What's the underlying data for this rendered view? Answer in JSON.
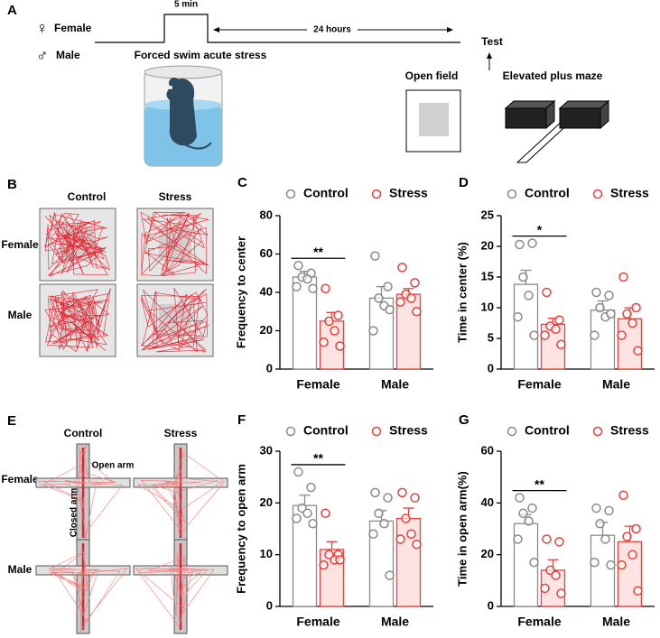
{
  "schematic": {
    "label": "A",
    "female_symbol": "♀",
    "female": "Female",
    "male_symbol": "♂",
    "male": "Male",
    "duration": "5 min",
    "interval": "24 hours",
    "stress": "Forced swim acute stress",
    "test": "Test",
    "open_field": "Open field",
    "plus_maze": "Elevated plus maze"
  },
  "tracks": {
    "label": "B",
    "columns": [
      "Control",
      "Stress"
    ],
    "rows": [
      "Female",
      "Male"
    ]
  },
  "maze_tracks": {
    "label": "E",
    "columns": [
      "Control",
      "Stress"
    ],
    "rows": [
      "Female",
      "Male"
    ],
    "open_arm": "Open arm",
    "closed_arm": "Closed arm"
  },
  "chart_data": [
    {
      "type": "bar",
      "label": "C",
      "ylabel": "Frequency to center",
      "categories": [
        "Female",
        "Male"
      ],
      "ylim": [
        0,
        80
      ],
      "yticks": [
        0,
        20,
        40,
        60,
        80
      ],
      "annotations": [
        "**"
      ],
      "series": [
        {
          "name": "Control",
          "color": "#8a8a8a",
          "fill": "#ffffff",
          "values": [
            48,
            37
          ],
          "errors": [
            3,
            6
          ],
          "points": [
            [
              54,
              50,
              48,
              47,
              43,
              42
            ],
            [
              59,
              43,
              37,
              33,
              20,
              31
            ]
          ]
        },
        {
          "name": "Stress",
          "color": "#e8413a",
          "fill": "#fde3e1",
          "values": [
            25,
            39
          ],
          "errors": [
            4.5,
            3
          ],
          "points": [
            [
              42,
              28,
              25,
              20,
              14,
              12
            ],
            [
              53,
              45,
              39,
              37,
              35,
              30
            ]
          ]
        }
      ]
    },
    {
      "type": "bar",
      "label": "D",
      "ylabel": "Time in center (%)",
      "categories": [
        "Female",
        "Male"
      ],
      "ylim": [
        0,
        25
      ],
      "yticks": [
        0,
        5,
        10,
        15,
        20,
        25
      ],
      "annotations": [
        "*"
      ],
      "series": [
        {
          "name": "Control",
          "color": "#8a8a8a",
          "fill": "#ffffff",
          "values": [
            13.8,
            9.6
          ],
          "errors": [
            2.3,
            1.5
          ],
          "points": [
            [
              20.3,
              20.5,
              15,
              12,
              8.5,
              5.5
            ],
            [
              12.5,
              12,
              10,
              8.5,
              5.5,
              9
            ]
          ]
        },
        {
          "name": "Stress",
          "color": "#e8413a",
          "fill": "#fde3e1",
          "values": [
            7.3,
            8.2
          ],
          "errors": [
            1,
            1.8
          ],
          "points": [
            [
              12.5,
              8,
              7,
              6.5,
              5.5,
              4
            ],
            [
              15,
              10,
              9,
              7.5,
              5.5,
              3
            ]
          ]
        }
      ]
    },
    {
      "type": "bar",
      "label": "F",
      "ylabel": "Frequency to open arm",
      "categories": [
        "Female",
        "Male"
      ],
      "ylim": [
        0,
        30
      ],
      "yticks": [
        0,
        10,
        20,
        30
      ],
      "annotations": [
        "**"
      ],
      "series": [
        {
          "name": "Control",
          "color": "#8a8a8a",
          "fill": "#ffffff",
          "values": [
            19.5,
            16.5
          ],
          "errors": [
            2,
            2
          ],
          "points": [
            [
              26,
              23,
              19,
              18,
              17,
              16
            ],
            [
              22,
              21,
              18,
              16,
              14,
              6
            ]
          ]
        },
        {
          "name": "Stress",
          "color": "#e8413a",
          "fill": "#fde3e1",
          "values": [
            11,
            17
          ],
          "errors": [
            1.5,
            2
          ],
          "points": [
            [
              18,
              10,
              10,
              9,
              8,
              9
            ],
            [
              22,
              21,
              17,
              14,
              13,
              12
            ]
          ]
        }
      ]
    },
    {
      "type": "bar",
      "label": "G",
      "ylabel": "Time in open arm(%)",
      "categories": [
        "Female",
        "Male"
      ],
      "ylim": [
        0,
        60
      ],
      "yticks": [
        0,
        20,
        40,
        60
      ],
      "annotations": [
        "**"
      ],
      "series": [
        {
          "name": "Control",
          "color": "#8a8a8a",
          "fill": "#ffffff",
          "values": [
            32,
            27.5
          ],
          "errors": [
            3.5,
            5
          ],
          "points": [
            [
              42,
              38,
              36,
              33,
              26,
              17
            ],
            [
              38,
              37,
              32,
              26,
              17,
              16
            ]
          ]
        },
        {
          "name": "Stress",
          "color": "#e8413a",
          "fill": "#fde3e1",
          "values": [
            14,
            25
          ],
          "errors": [
            4,
            6
          ],
          "points": [
            [
              26,
              25,
              14,
              12,
              7,
              5
            ],
            [
              43,
              30,
              27,
              20,
              16,
              6
            ]
          ]
        }
      ]
    }
  ]
}
